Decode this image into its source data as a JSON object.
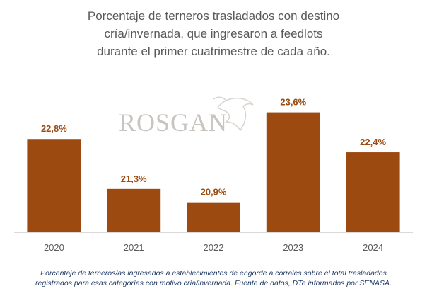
{
  "chart_data": {
    "type": "bar",
    "title_lines": [
      "Porcentaje de terneros trasladados con destino",
      "cría/invernada, que ingresaron a feedlots",
      "durante el primer cuatrimestre de cada año."
    ],
    "categories": [
      "2020",
      "2021",
      "2022",
      "2023",
      "2024"
    ],
    "values": [
      22.8,
      21.3,
      20.9,
      23.6,
      22.4
    ],
    "value_labels": [
      "22,8%",
      "21,3%",
      "20,9%",
      "23,6%",
      "22,4%"
    ],
    "ylim": [
      20.0,
      24.25
    ],
    "grid": false,
    "bar_color": "#9c4a0f",
    "label_color": "#9c4a0f",
    "footnote_lines": [
      "Porcentaje de terneros/as ingresados a establecimientos de engorde a corrales sobre el total trasladados",
      "registrados para esas categorías con motivo cría/invernada. Fuente de datos, DTe informados por SENASA."
    ]
  },
  "watermark": {
    "text": "ROSGAN",
    "icon": "bull-head-icon"
  }
}
